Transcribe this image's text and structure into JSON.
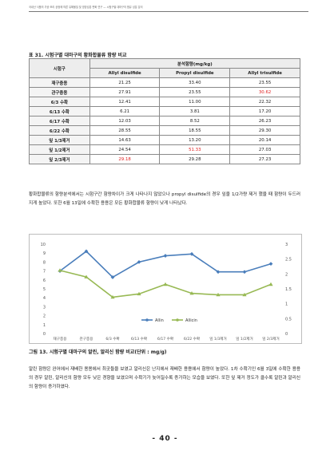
{
  "header": {
    "running": "국내산 식품의 가공·조리 공정에 따른 유해물질 및 영양성분 변화 연구 — 시험구별 대마구의 함유 성분 분석"
  },
  "table": {
    "caption": "표 31. 시험구별 대마구의 황화합물류 함량 비교",
    "row_header": "시험구",
    "group_header": "분석함량(mg/kg)",
    "columns": [
      "Allyl disulfide",
      "Propyl disulfide",
      "Allyl trisulfide"
    ],
    "rows": [
      {
        "label": "재구충용",
        "values": [
          "21.25",
          "33.40",
          "23.55"
        ],
        "highlight": [
          false,
          false,
          false
        ]
      },
      {
        "label": "관구충용",
        "values": [
          "27.91",
          "23.55",
          "30.62"
        ],
        "highlight": [
          false,
          false,
          true
        ]
      },
      {
        "label": "6/3 수확",
        "values": [
          "12.41",
          "11.00",
          "22.32"
        ],
        "highlight": [
          false,
          false,
          false
        ]
      },
      {
        "label": "6/13 수확",
        "values": [
          "6.21",
          "3.81",
          "17.20"
        ],
        "highlight": [
          false,
          false,
          false
        ]
      },
      {
        "label": "6/17 수확",
        "values": [
          "12.03",
          "8.52",
          "26.23"
        ],
        "highlight": [
          false,
          false,
          false
        ]
      },
      {
        "label": "6/22 수확",
        "values": [
          "28.55",
          "18.55",
          "29.30"
        ],
        "highlight": [
          false,
          false,
          false
        ]
      },
      {
        "label": "잎 1/3제거",
        "values": [
          "14.63",
          "13.20",
          "20.14"
        ],
        "highlight": [
          false,
          false,
          false
        ]
      },
      {
        "label": "잎 1/2제거",
        "values": [
          "24.54",
          "51.33",
          "27.03"
        ],
        "highlight": [
          false,
          true,
          false
        ]
      },
      {
        "label": "잎 2/3제거",
        "values": [
          "29.18",
          "29.28",
          "27.23"
        ],
        "highlight": [
          true,
          false,
          false
        ]
      }
    ]
  },
  "paragraph1": "황화합물류의 함량분석에서는 시험구간 함량차이가 크게 나타나지 않았으나 propyl disulfide의 경우 잎을 1/2가량 제거 했을 때 함량이 두드러지게 높았다. 또한 6월 13일에 수확한 용용은 모든 황화합물류 함량이 낮게 나타났다.",
  "chart_data": {
    "type": "line",
    "categories": [
      "재구충용",
      "관구충용",
      "6/3 수확",
      "6/13 수확",
      "6/17 수확",
      "6/22 수확",
      "잎 1/3제거",
      "잎 1/2제거",
      "잎 2/3제거"
    ],
    "series": [
      {
        "name": "Allin",
        "axis": "left",
        "color": "#4a7ebb",
        "values": [
          7.0,
          9.2,
          6.3,
          8.0,
          8.7,
          8.9,
          6.9,
          6.9,
          7.8
        ]
      },
      {
        "name": "Allicin",
        "axis": "right",
        "color": "#98b954",
        "values": [
          2.12,
          1.9,
          1.22,
          1.33,
          1.65,
          1.35,
          1.3,
          1.3,
          1.65
        ]
      }
    ],
    "ylim_left": [
      0,
      10
    ],
    "ylim_right": [
      0,
      3
    ],
    "yticks_left": [
      "0",
      "1",
      "2",
      "3",
      "4",
      "5",
      "6",
      "7",
      "8",
      "9",
      "10"
    ],
    "yticks_right": [
      "0",
      "0.5",
      "1",
      "1.5",
      "2",
      "2.5",
      "3"
    ],
    "legend_position": "bottom",
    "grid": false
  },
  "figure_caption": "그림 13. 시험구별 대마구의 알린, 알리신 함량 비교(단위 : mg/g)",
  "paragraph2": "알린 함량은 완어에서 재배한 용용에서 최곳들을 보였고 알리신은 난지에서 재배한 용용에서 함량이 높았다. 1차 수확기인 6월 3일에 수확한 용용의 경우 알린, 알리신의 함량 모두 낮은 경향을 보였으며 수확기가 늦어질수록 증가하는 모습을 보였다. 또한 잎 제거 정도가 클수록 알린과 알리신의 함량이 증가하였다.",
  "page_number": "- 40 -"
}
